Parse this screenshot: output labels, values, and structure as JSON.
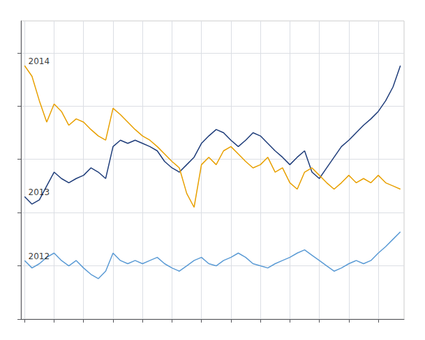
{
  "chart_data": {
    "type": "line",
    "x": [
      0,
      1,
      2,
      3,
      4,
      5,
      6,
      7,
      8,
      9,
      10,
      11,
      12,
      13,
      14,
      15,
      16,
      17,
      18,
      19,
      20,
      21,
      22,
      23,
      24,
      25,
      26,
      27,
      28,
      29,
      30,
      31,
      32,
      33,
      34,
      35,
      36,
      37,
      38,
      39,
      40,
      41,
      42,
      43,
      44,
      45,
      46,
      47,
      48,
      49,
      50,
      51
    ],
    "series": [
      {
        "name": "2012",
        "color": "#5b9bd5",
        "values": [
          3.55,
          3.48,
          3.52,
          3.58,
          3.62,
          3.55,
          3.5,
          3.55,
          3.48,
          3.42,
          3.38,
          3.45,
          3.62,
          3.55,
          3.52,
          3.55,
          3.52,
          3.55,
          3.58,
          3.52,
          3.48,
          3.45,
          3.5,
          3.55,
          3.58,
          3.52,
          3.5,
          3.55,
          3.58,
          3.62,
          3.58,
          3.52,
          3.5,
          3.48,
          3.52,
          3.55,
          3.58,
          3.62,
          3.65,
          3.6,
          3.55,
          3.5,
          3.45,
          3.48,
          3.52,
          3.55,
          3.52,
          3.55,
          3.62,
          3.68,
          3.75,
          3.82
        ]
      },
      {
        "name": "2013",
        "color": "#1f3d7a",
        "values": [
          4.15,
          4.08,
          4.12,
          4.25,
          4.38,
          4.32,
          4.28,
          4.32,
          4.35,
          4.42,
          4.38,
          4.32,
          4.62,
          4.68,
          4.65,
          4.68,
          4.65,
          4.62,
          4.58,
          4.48,
          4.42,
          4.38,
          4.45,
          4.52,
          4.65,
          4.72,
          4.78,
          4.75,
          4.68,
          4.62,
          4.68,
          4.75,
          4.72,
          4.65,
          4.58,
          4.52,
          4.45,
          4.52,
          4.58,
          4.38,
          4.32,
          4.42,
          4.52,
          4.62,
          4.68,
          4.75,
          4.82,
          4.88,
          4.95,
          5.05,
          5.18,
          5.38
        ]
      },
      {
        "name": "2014",
        "color": "#e8a000",
        "values": [
          5.38,
          5.28,
          5.05,
          4.85,
          5.02,
          4.95,
          4.82,
          4.88,
          4.85,
          4.78,
          4.72,
          4.68,
          4.98,
          4.92,
          4.85,
          4.78,
          4.72,
          4.68,
          4.62,
          4.55,
          4.48,
          4.42,
          4.18,
          4.05,
          4.45,
          4.52,
          4.45,
          4.58,
          4.62,
          4.55,
          4.48,
          4.42,
          4.45,
          4.52,
          4.38,
          4.42,
          4.28,
          4.22,
          4.38,
          4.42,
          4.35,
          4.28,
          4.22,
          4.28,
          4.35,
          4.28,
          4.32,
          4.28,
          4.35,
          4.28,
          4.25,
          4.22
        ]
      }
    ],
    "annotations": [
      {
        "text": "2014",
        "x": 0.5,
        "y": 5.38
      },
      {
        "text": "2013",
        "x": 0.5,
        "y": 4.15
      },
      {
        "text": "2012",
        "x": 0.5,
        "y": 3.55
      }
    ],
    "xlim": [
      -0.5,
      51.5
    ],
    "xticks": [
      0,
      4,
      8,
      12,
      16,
      20,
      24,
      28,
      32,
      36,
      40,
      44,
      48
    ],
    "ylim": [
      3.0,
      5.8
    ],
    "yticks": [
      3.0,
      3.5,
      4.0,
      4.5,
      5.0,
      5.5
    ],
    "grid": true,
    "legend": false,
    "tick_labels": false
  }
}
